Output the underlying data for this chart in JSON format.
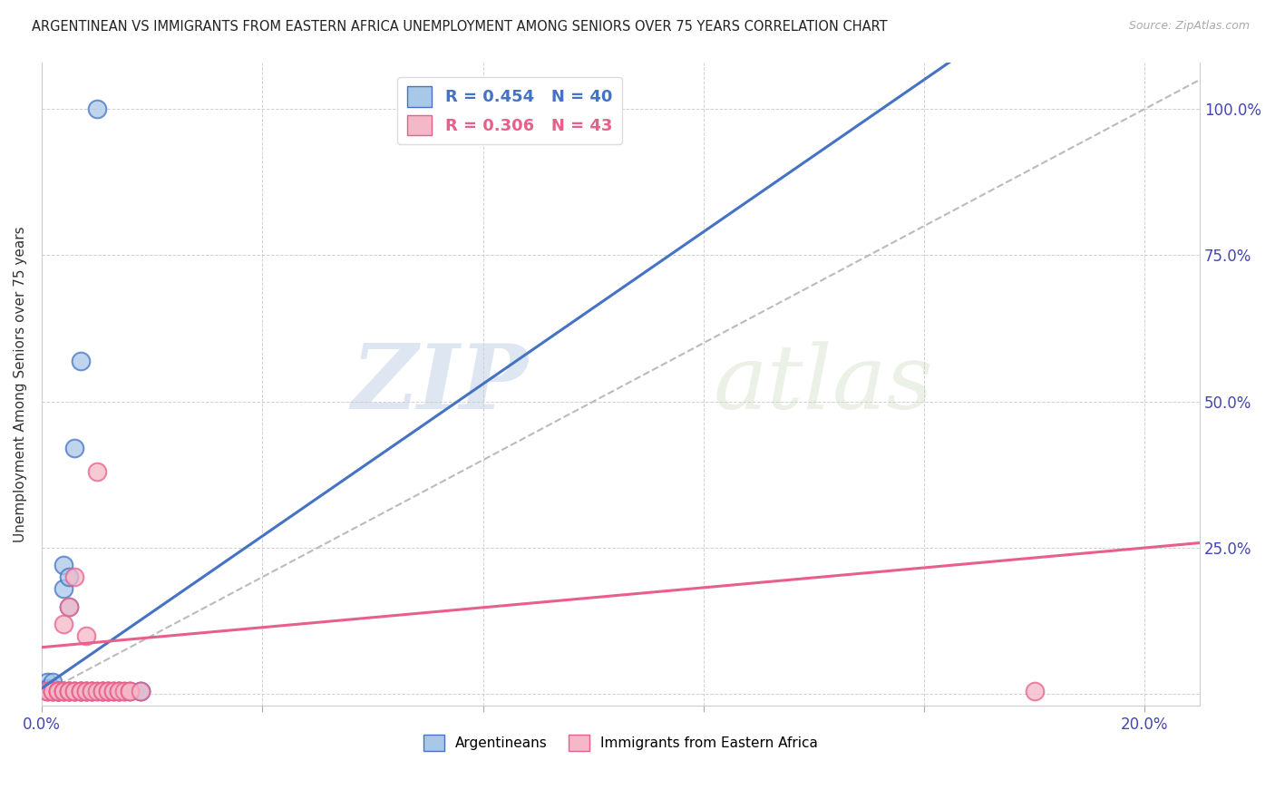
{
  "title": "ARGENTINEAN VS IMMIGRANTS FROM EASTERN AFRICA UNEMPLOYMENT AMONG SENIORS OVER 75 YEARS CORRELATION CHART",
  "source": "Source: ZipAtlas.com",
  "ylabel": "Unemployment Among Seniors over 75 years",
  "legend_label_blue": "Argentineans",
  "legend_label_pink": "Immigrants from Eastern Africa",
  "watermark_zip": "ZIP",
  "watermark_atlas": "atlas",
  "blue_color": "#a8c8e8",
  "pink_color": "#f4b8c8",
  "blue_line_color": "#4472c4",
  "pink_line_color": "#e8608a",
  "ref_line_color": "#bbbbbb",
  "blue_scatter": [
    [
      0.001,
      0.02
    ],
    [
      0.001,
      0.01
    ],
    [
      0.001,
      0.005
    ],
    [
      0.002,
      0.005
    ],
    [
      0.002,
      0.01
    ],
    [
      0.002,
      0.02
    ],
    [
      0.003,
      0.005
    ],
    [
      0.003,
      0.005
    ],
    [
      0.003,
      0.005
    ],
    [
      0.003,
      0.005
    ],
    [
      0.004,
      0.005
    ],
    [
      0.004,
      0.18
    ],
    [
      0.004,
      0.22
    ],
    [
      0.005,
      0.005
    ],
    [
      0.005,
      0.15
    ],
    [
      0.005,
      0.2
    ],
    [
      0.005,
      0.005
    ],
    [
      0.006,
      0.005
    ],
    [
      0.006,
      0.005
    ],
    [
      0.006,
      0.42
    ],
    [
      0.007,
      0.57
    ],
    [
      0.007,
      0.005
    ],
    [
      0.007,
      0.005
    ],
    [
      0.008,
      0.005
    ],
    [
      0.008,
      0.005
    ],
    [
      0.009,
      0.005
    ],
    [
      0.009,
      0.005
    ],
    [
      0.01,
      0.005
    ],
    [
      0.011,
      0.005
    ],
    [
      0.011,
      0.005
    ],
    [
      0.012,
      0.005
    ],
    [
      0.012,
      0.005
    ],
    [
      0.013,
      0.005
    ],
    [
      0.014,
      0.005
    ],
    [
      0.014,
      0.005
    ],
    [
      0.015,
      0.005
    ],
    [
      0.016,
      0.005
    ],
    [
      0.018,
      0.005
    ],
    [
      0.018,
      0.005
    ],
    [
      0.01,
      1.0
    ]
  ],
  "pink_scatter": [
    [
      0.001,
      0.005
    ],
    [
      0.001,
      0.005
    ],
    [
      0.002,
      0.005
    ],
    [
      0.002,
      0.005
    ],
    [
      0.002,
      0.005
    ],
    [
      0.003,
      0.005
    ],
    [
      0.003,
      0.005
    ],
    [
      0.003,
      0.005
    ],
    [
      0.003,
      0.005
    ],
    [
      0.004,
      0.005
    ],
    [
      0.004,
      0.005
    ],
    [
      0.004,
      0.005
    ],
    [
      0.004,
      0.12
    ],
    [
      0.005,
      0.005
    ],
    [
      0.005,
      0.005
    ],
    [
      0.005,
      0.005
    ],
    [
      0.005,
      0.15
    ],
    [
      0.006,
      0.005
    ],
    [
      0.006,
      0.005
    ],
    [
      0.006,
      0.2
    ],
    [
      0.007,
      0.005
    ],
    [
      0.007,
      0.005
    ],
    [
      0.007,
      0.005
    ],
    [
      0.008,
      0.005
    ],
    [
      0.008,
      0.005
    ],
    [
      0.008,
      0.1
    ],
    [
      0.009,
      0.005
    ],
    [
      0.009,
      0.005
    ],
    [
      0.01,
      0.005
    ],
    [
      0.01,
      0.38
    ],
    [
      0.011,
      0.005
    ],
    [
      0.011,
      0.005
    ],
    [
      0.012,
      0.005
    ],
    [
      0.012,
      0.005
    ],
    [
      0.013,
      0.005
    ],
    [
      0.013,
      0.005
    ],
    [
      0.014,
      0.005
    ],
    [
      0.014,
      0.005
    ],
    [
      0.015,
      0.005
    ],
    [
      0.016,
      0.005
    ],
    [
      0.016,
      0.005
    ],
    [
      0.018,
      0.005
    ],
    [
      0.18,
      0.005
    ]
  ],
  "xlim": [
    0.0,
    0.21
  ],
  "ylim": [
    -0.02,
    1.08
  ],
  "xticks": [
    0.0,
    0.04,
    0.08,
    0.12,
    0.16,
    0.2
  ],
  "yticks": [
    0.0,
    0.25,
    0.5,
    0.75,
    1.0
  ],
  "yticklabels_right": [
    "",
    "25.0%",
    "50.0%",
    "75.0%",
    "100.0%"
  ]
}
